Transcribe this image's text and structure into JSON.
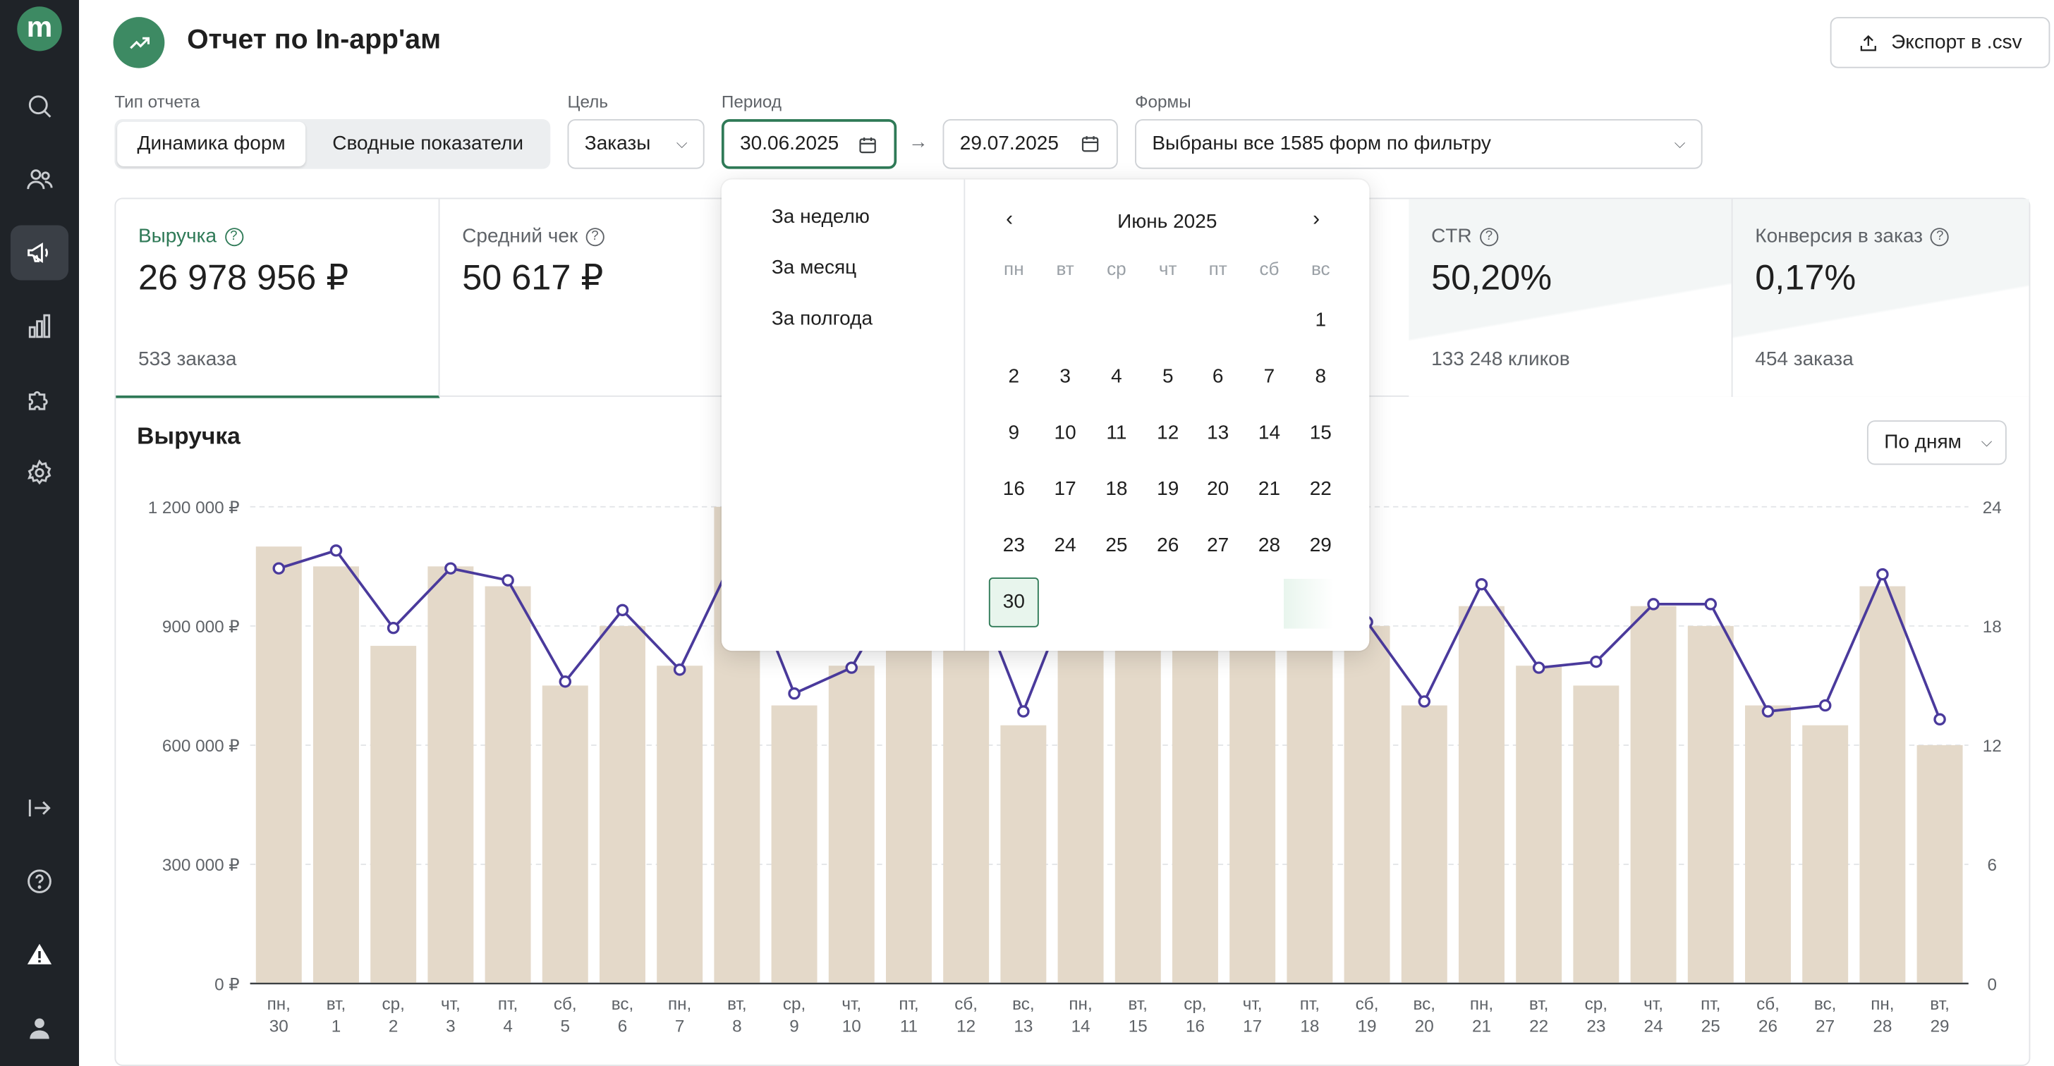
{
  "page": {
    "title": "Отчет по In-app'ам",
    "export_label": "Экспорт в .csv"
  },
  "sidebar": {
    "logo_letter": "m",
    "items": [
      {
        "icon": "search-icon"
      },
      {
        "icon": "users-icon"
      },
      {
        "icon": "megaphone-icon",
        "active": true
      },
      {
        "icon": "bar-chart-icon"
      },
      {
        "icon": "puzzle-icon"
      },
      {
        "icon": "settings-icon"
      },
      {
        "icon": "exit-icon"
      },
      {
        "icon": "help-icon"
      },
      {
        "icon": "warning-icon"
      },
      {
        "icon": "user-icon"
      }
    ]
  },
  "filters": {
    "report_type_label": "Тип отчета",
    "report_type_options": [
      "Динамика форм",
      "Сводные показатели"
    ],
    "report_type_selected": "Динамика форм",
    "goal_label": "Цель",
    "goal_value": "Заказы",
    "period_label": "Период",
    "period_from": "30.06.2025",
    "period_to": "29.07.2025",
    "forms_label": "Формы",
    "forms_value": "Выбраны все 1585 форм по фильтру"
  },
  "kpis": [
    {
      "label": "Выручка",
      "value": "26 978 956 ₽",
      "sub": "533 заказа",
      "active": true
    },
    {
      "label": "Средний чек",
      "value": "50 617 ₽",
      "sub": ""
    },
    {
      "label": "CTR",
      "value": "50,20%",
      "sub": "133 248 кликов"
    },
    {
      "label": "Конверсия в заказ",
      "value": "0,17%",
      "sub": "454 заказа"
    }
  ],
  "chart_section": {
    "title": "Выручка",
    "granularity": "По дням"
  },
  "date_picker": {
    "presets": [
      "За неделю",
      "За месяц",
      "За полгода"
    ],
    "month_label": "Июнь 2025",
    "weekdays": [
      "пн",
      "вт",
      "ср",
      "чт",
      "пт",
      "сб",
      "вс"
    ],
    "first_weekday_offset": 6,
    "days_in_month": 30,
    "selected_day": 30
  },
  "chart_data": {
    "type": "bar",
    "title": "Выручка",
    "categories": [
      "пн, 30",
      "вт, 1",
      "ср, 2",
      "чт, 3",
      "пт, 4",
      "сб, 5",
      "вс, 6",
      "пн, 7",
      "вт, 8",
      "ср, 9",
      "чт, 10",
      "пт, 11",
      "сб, 12",
      "вс, 13",
      "пн, 14",
      "вт, 15",
      "ср, 16",
      "чт, 17",
      "пт, 18",
      "сб, 19",
      "вс, 20",
      "пн, 21",
      "вт, 22",
      "ср, 23",
      "чт, 24",
      "пт, 25",
      "сб, 26",
      "вс, 27",
      "пн, 28",
      "вт, 29"
    ],
    "y_left_ticks": [
      "0 ₽",
      "300 000 ₽",
      "600 000 ₽",
      "900 000 ₽",
      "1 200 000 ₽"
    ],
    "y_right_ticks": [
      "0",
      "6",
      "12",
      "18",
      "24"
    ],
    "ylim": [
      0,
      1200000
    ],
    "y2lim": [
      0,
      24
    ],
    "grid": true,
    "colors": {
      "bars": "#e4d9c9",
      "line": "#4a3a9c"
    },
    "series": [
      {
        "type": "bar",
        "axis": "left",
        "values": [
          1100000,
          1050000,
          850000,
          1050000,
          1000000,
          750000,
          900000,
          800000,
          1200000,
          700000,
          800000,
          1050000,
          1050000,
          650000,
          1050000,
          1050000,
          1050000,
          1050000,
          1050000,
          900000,
          700000,
          950000,
          800000,
          750000,
          950000,
          900000,
          700000,
          650000,
          1000000,
          600000
        ]
      },
      {
        "type": "line",
        "axis": "right",
        "values": [
          20.9,
          21.8,
          17.9,
          20.9,
          20.3,
          15.2,
          18.8,
          15.8,
          21.8,
          14.6,
          15.9,
          21.0,
          21.0,
          13.7,
          21.0,
          21.0,
          21.0,
          21.0,
          21.0,
          18.2,
          14.2,
          20.1,
          15.9,
          16.2,
          19.1,
          19.1,
          13.7,
          14.0,
          20.6,
          13.3
        ]
      }
    ]
  }
}
